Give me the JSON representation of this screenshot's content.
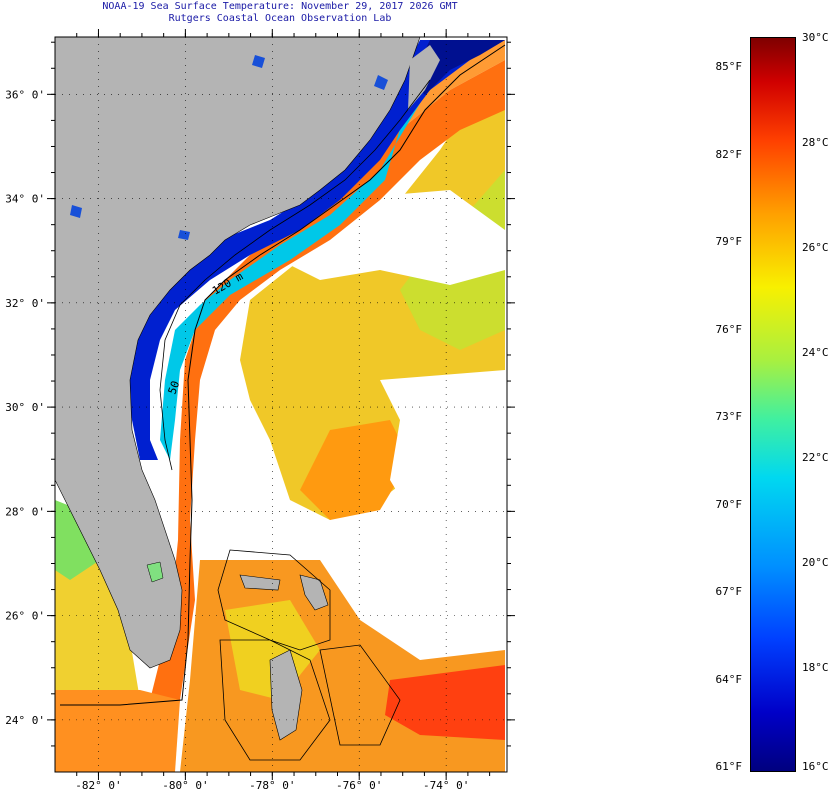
{
  "title": {
    "line1": "NOAA-19 Sea Surface Temperature:  November 29, 2017 2026 GMT",
    "line2": "Rutgers Coastal Ocean Observation Lab"
  },
  "map": {
    "lat_labels": [
      {
        "label": "36° 0'",
        "lat": 36
      },
      {
        "label": "34° 0'",
        "lat": 34
      },
      {
        "label": "32° 0'",
        "lat": 32
      },
      {
        "label": "30° 0'",
        "lat": 30
      },
      {
        "label": "28° 0'",
        "lat": 28
      },
      {
        "label": "26° 0'",
        "lat": 26
      },
      {
        "label": "24° 0'",
        "lat": 24
      }
    ],
    "lon_labels": [
      {
        "label": "-82° 0'",
        "lon": -82
      },
      {
        "label": "-80° 0'",
        "lon": -80
      },
      {
        "label": "-78° 0'",
        "lon": -78
      },
      {
        "label": "-76° 0'",
        "lon": -76
      },
      {
        "label": "-74° 0'",
        "lon": -74
      }
    ],
    "isobath_labels": [
      "120 m",
      "50"
    ],
    "colors": {
      "land": "#b4b4b4",
      "cloud": "#ffffff",
      "coastal_cold": "#0018d8",
      "shelf_cyan": "#00c8f0",
      "gulfstream_orange": "#ff7800",
      "warm_yellow": "#f8e020",
      "lake_blue": "#1850d8"
    }
  },
  "colorbar": {
    "fahrenheit": [
      {
        "label": "85°F",
        "value": 85
      },
      {
        "label": "82°F",
        "value": 82
      },
      {
        "label": "79°F",
        "value": 79
      },
      {
        "label": "76°F",
        "value": 76
      },
      {
        "label": "73°F",
        "value": 73
      },
      {
        "label": "70°F",
        "value": 70
      },
      {
        "label": "67°F",
        "value": 67
      },
      {
        "label": "64°F",
        "value": 64
      },
      {
        "label": "61°F",
        "value": 61
      }
    ],
    "celsius": [
      {
        "label": "30°C",
        "value": 30
      },
      {
        "label": "28°C",
        "value": 28
      },
      {
        "label": "26°C",
        "value": 26
      },
      {
        "label": "24°C",
        "value": 24
      },
      {
        "label": "22°C",
        "value": 22
      },
      {
        "label": "20°C",
        "value": 20
      },
      {
        "label": "18°C",
        "value": 18
      },
      {
        "label": "16°C",
        "value": 16
      }
    ],
    "min_c": 16,
    "max_c": 30
  }
}
